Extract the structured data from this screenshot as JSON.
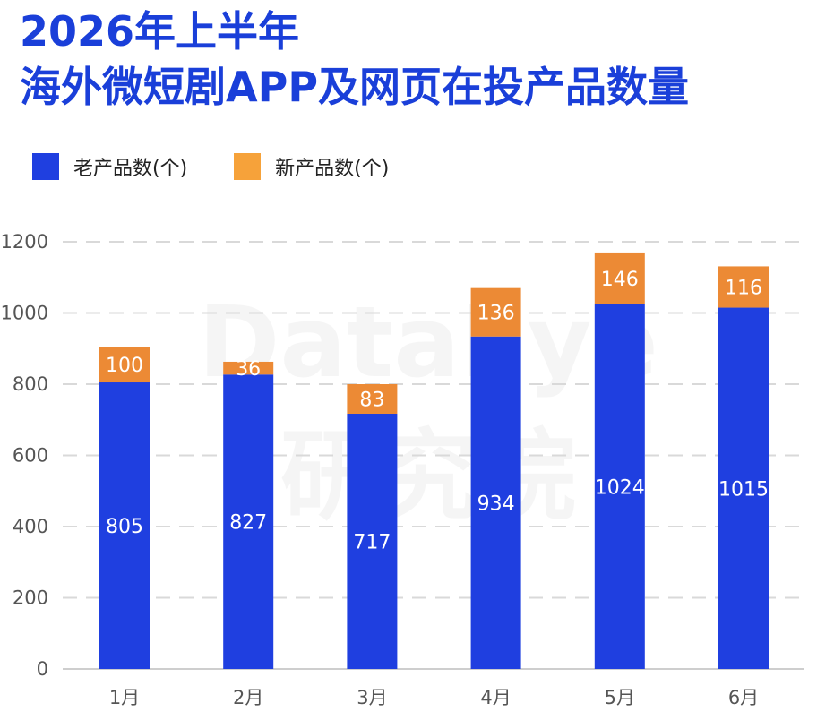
{
  "title_line1": "2026年上半年",
  "title_line2": "海外微短剧APP及网页在投产品数量",
  "watermark": [
    "DataEye",
    "研究院"
  ],
  "colors": {
    "title": "#1a3fd9",
    "old": "#1f3fe0",
    "new": "#ec8a35",
    "legend_new": "#f6a23a",
    "grid": "#d9d9d9"
  },
  "chart_data": {
    "type": "bar",
    "stacked": true,
    "categories": [
      "1月",
      "2月",
      "3月",
      "4月",
      "5月",
      "6月"
    ],
    "series": [
      {
        "name": "老产品数(个)",
        "values": [
          805,
          827,
          717,
          934,
          1024,
          1015
        ]
      },
      {
        "name": "新产品数(个)",
        "values": [
          100,
          36,
          83,
          136,
          146,
          116
        ]
      }
    ],
    "ylim": [
      0,
      1200
    ],
    "yticks": [
      "0",
      "200",
      "400",
      "600",
      "800",
      "1000",
      "1200"
    ],
    "grid": true,
    "legend_position": "top-left"
  }
}
